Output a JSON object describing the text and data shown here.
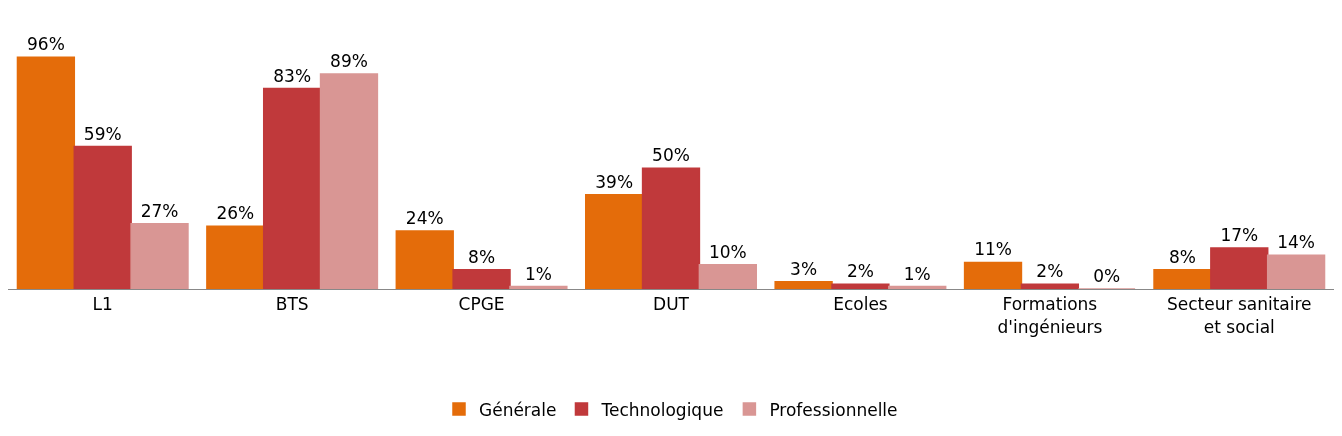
{
  "chart_data": {
    "type": "bar",
    "categories": [
      "L1",
      "BTS",
      "CPGE",
      "DUT",
      "Ecoles",
      "Formations d'ingénieurs",
      "Secteur sanitaire et social"
    ],
    "series": [
      {
        "name": "Générale",
        "color": "#e46c0a",
        "values": [
          96,
          26,
          24,
          39,
          3,
          11,
          8
        ],
        "value_labels": [
          "96%",
          "26%",
          "24%",
          "39%",
          "3%",
          "11%",
          "8%"
        ]
      },
      {
        "name": "Technologique",
        "color": "#c0393b",
        "values": [
          59,
          83,
          8,
          50,
          2,
          2,
          17
        ],
        "value_labels": [
          "59%",
          "83%",
          "8%",
          "50%",
          "2%",
          "2%",
          "17%"
        ]
      },
      {
        "name": "Professionnelle",
        "color": "#d99694",
        "values": [
          27,
          89,
          1,
          10,
          1,
          0,
          14
        ],
        "value_labels": [
          "27%",
          "89%",
          "1%",
          "10%",
          "1%",
          "0%",
          "14%"
        ]
      }
    ],
    "legend": "bottom"
  }
}
